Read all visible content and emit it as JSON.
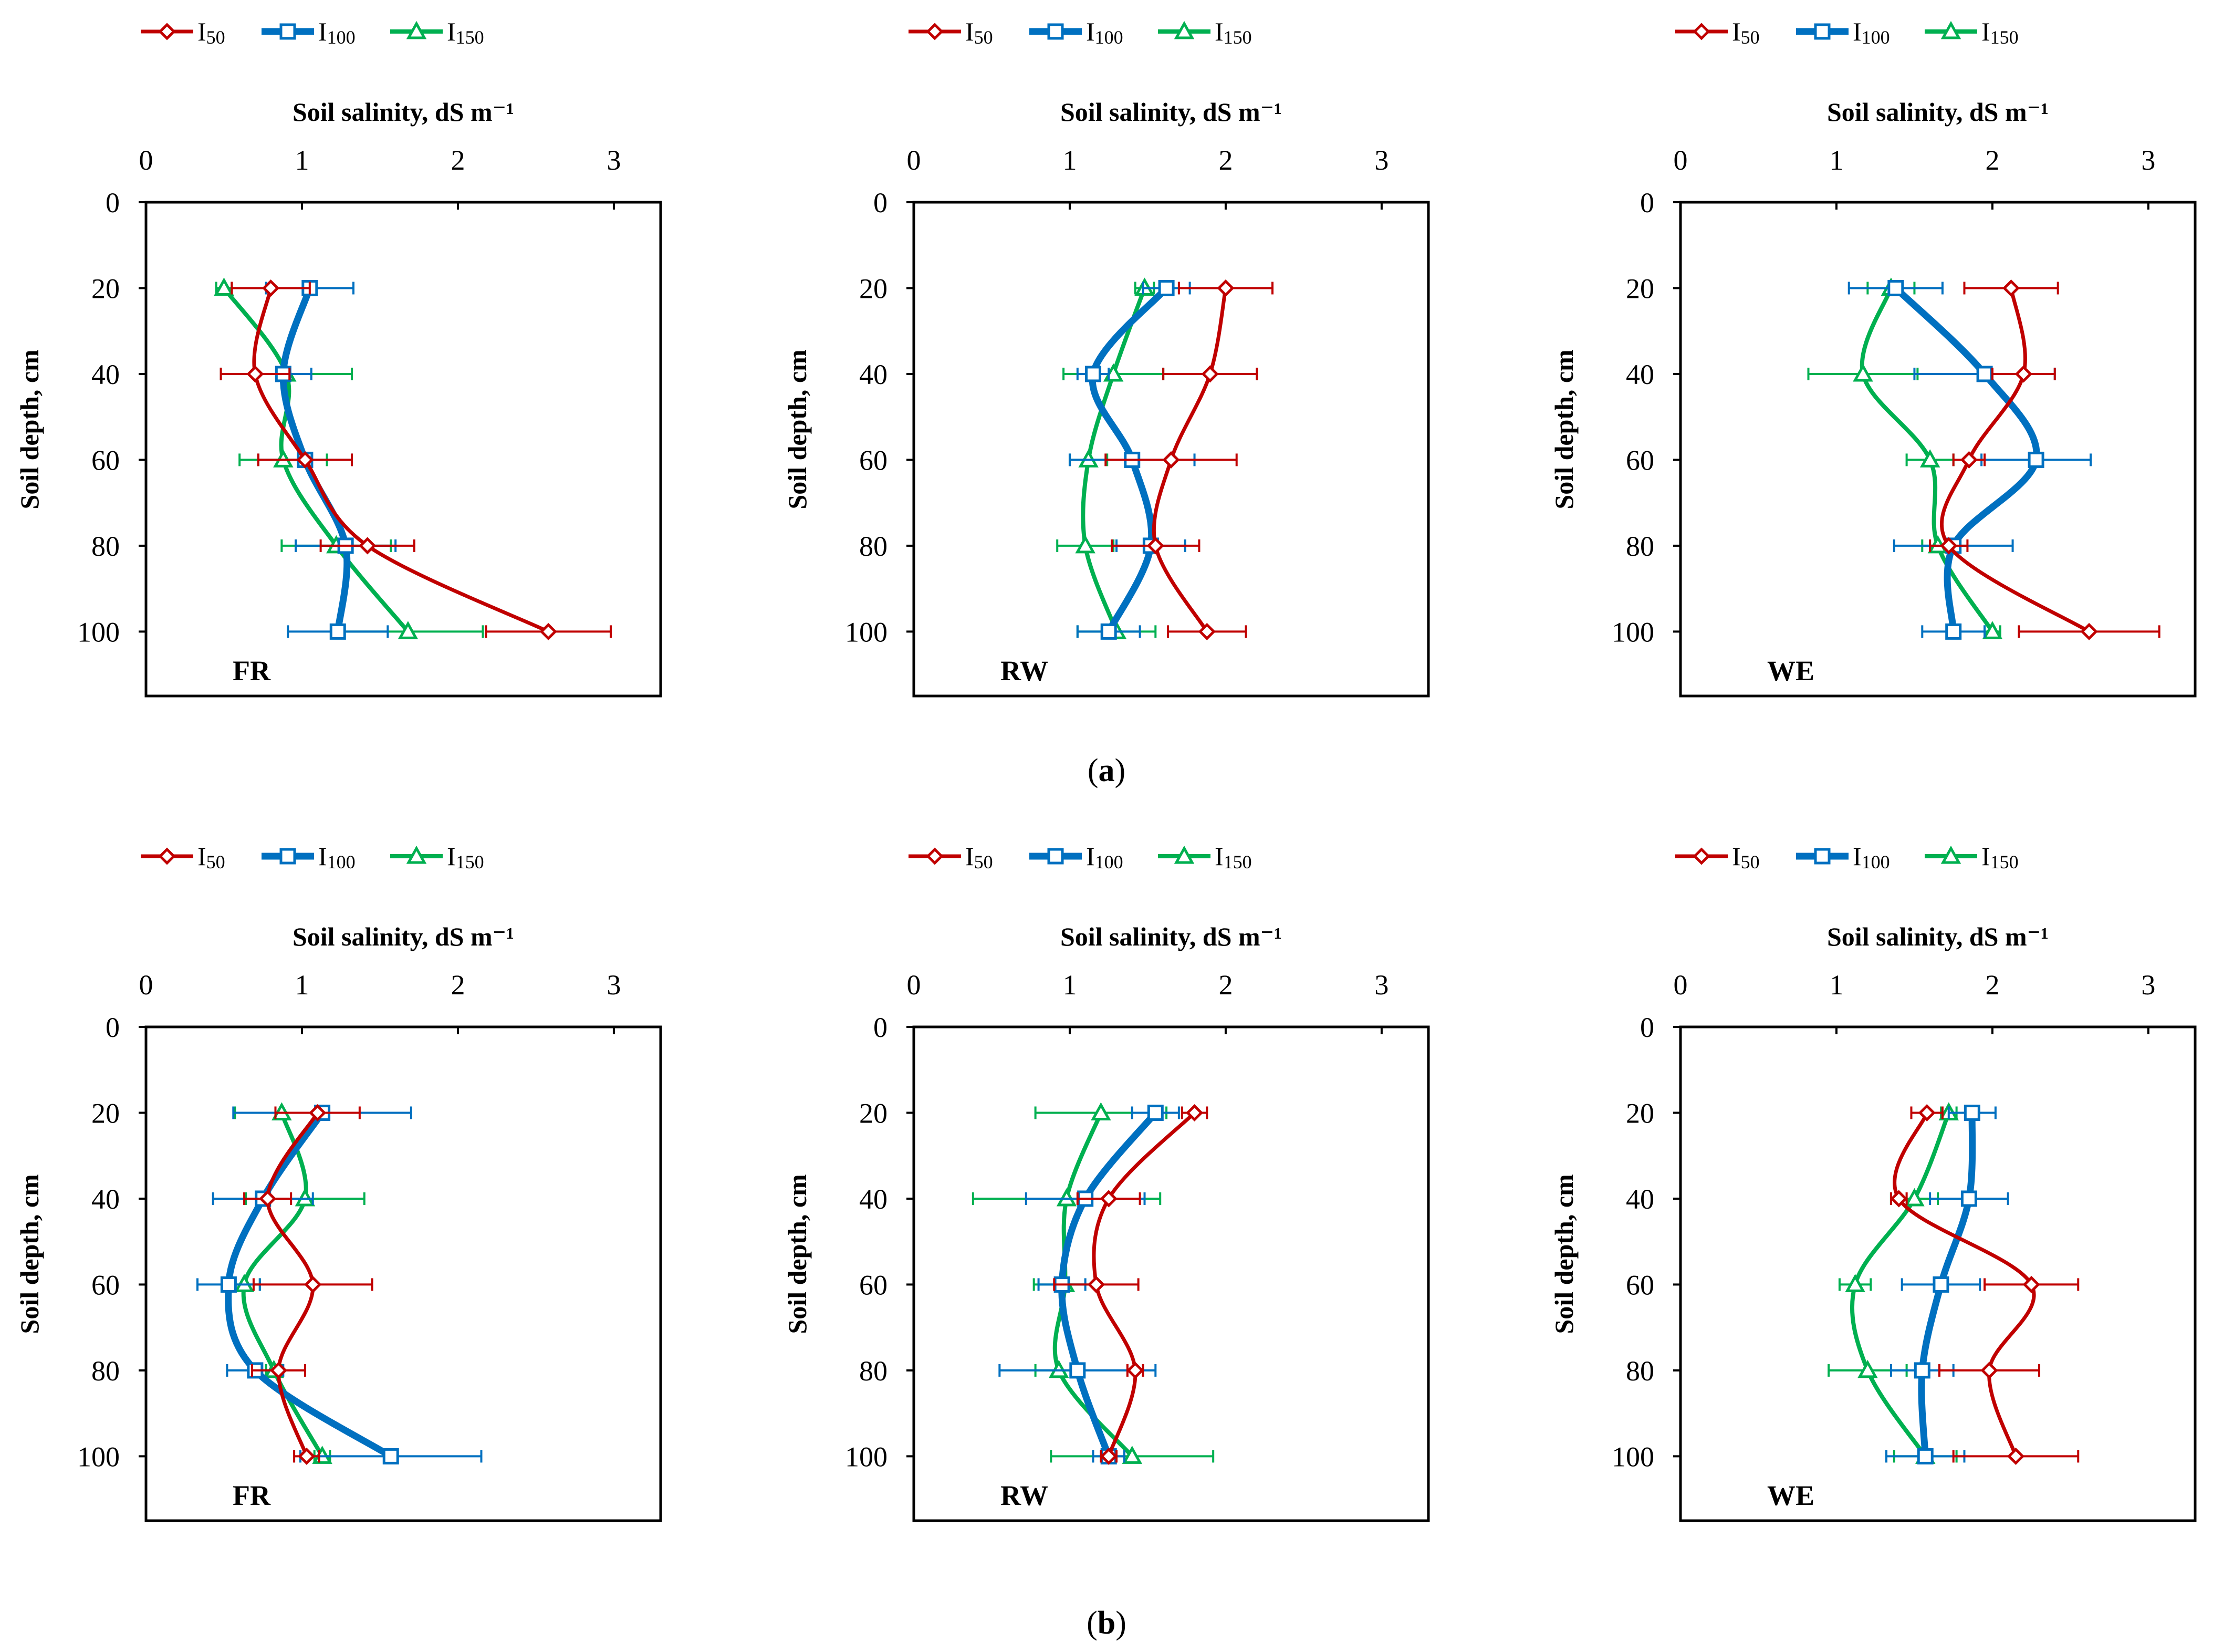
{
  "colors": {
    "I50": "#C00000",
    "I100": "#0070C0",
    "I150": "#00B050"
  },
  "legend_entries": [
    {
      "key": "I50",
      "label": "I",
      "sub": "50",
      "marker": "diamond"
    },
    {
      "key": "I100",
      "label": "I",
      "sub": "100",
      "marker": "square"
    },
    {
      "key": "I150",
      "label": "I",
      "sub": "150",
      "marker": "triangle"
    }
  ],
  "axis": {
    "xlabel": "Soil salinity, dS m⁻¹",
    "ylabel": "Soil depth, cm",
    "xticks": [
      "0",
      "1",
      "2",
      "3"
    ],
    "yticks": [
      "0",
      "20",
      "40",
      "60",
      "80",
      "100"
    ]
  },
  "captions": [
    {
      "open": "(",
      "letter": "a",
      "close": ")"
    },
    {
      "open": "(",
      "letter": "b",
      "close": ")"
    }
  ],
  "chart_data": [
    {
      "type": "line",
      "panel": "FR",
      "row": "a",
      "xlabel": "Soil salinity, dS m⁻¹",
      "ylabel": "Soil depth, cm",
      "xlim": [
        0,
        3.3
      ],
      "ylim": [
        0,
        115
      ],
      "depths": [
        20,
        40,
        60,
        80,
        100
      ],
      "series": [
        {
          "name": "I50",
          "values": [
            0.8,
            0.7,
            1.02,
            1.42,
            2.58
          ],
          "errors": [
            0.25,
            0.22,
            0.3,
            0.3,
            0.4
          ]
        },
        {
          "name": "I100",
          "values": [
            1.05,
            0.88,
            1.02,
            1.28,
            1.23
          ],
          "errors": [
            0.28,
            0.18,
            0.3,
            0.32,
            0.32
          ]
        },
        {
          "name": "I150",
          "values": [
            0.5,
            0.9,
            0.88,
            1.22,
            1.68
          ],
          "errors": [
            0.05,
            0.42,
            0.28,
            0.35,
            0.48
          ]
        }
      ]
    },
    {
      "type": "line",
      "panel": "RW",
      "row": "a",
      "xlabel": "Soil salinity, dS m⁻¹",
      "ylabel": "Soil depth, cm",
      "xlim": [
        0,
        3.3
      ],
      "ylim": [
        0,
        115
      ],
      "depths": [
        20,
        40,
        60,
        80,
        100
      ],
      "series": [
        {
          "name": "I50",
          "values": [
            2.0,
            1.9,
            1.65,
            1.55,
            1.88
          ],
          "errors": [
            0.3,
            0.3,
            0.42,
            0.28,
            0.25
          ]
        },
        {
          "name": "I100",
          "values": [
            1.62,
            1.15,
            1.4,
            1.52,
            1.25
          ],
          "errors": [
            0.15,
            0.1,
            0.4,
            0.22,
            0.2
          ]
        },
        {
          "name": "I150",
          "values": [
            1.48,
            1.28,
            1.12,
            1.1,
            1.3
          ],
          "errors": [
            0.06,
            0.32,
            0.12,
            0.18,
            0.25
          ]
        }
      ]
    },
    {
      "type": "line",
      "panel": "WE",
      "row": "a",
      "xlabel": "Soil salinity, dS m⁻¹",
      "ylabel": "Soil depth, cm",
      "xlim": [
        0,
        3.3
      ],
      "ylim": [
        0,
        115
      ],
      "depths": [
        20,
        40,
        60,
        80,
        100
      ],
      "series": [
        {
          "name": "I50",
          "values": [
            2.12,
            2.2,
            1.85,
            1.72,
            2.62
          ],
          "errors": [
            0.3,
            0.2,
            0.1,
            0.12,
            0.45
          ]
        },
        {
          "name": "I100",
          "values": [
            1.38,
            1.95,
            2.28,
            1.75,
            1.75
          ],
          "errors": [
            0.3,
            0.45,
            0.35,
            0.38,
            0.2
          ]
        },
        {
          "name": "I150",
          "values": [
            1.35,
            1.17,
            1.6,
            1.65,
            2.0
          ],
          "errors": [
            0.15,
            0.35,
            0.15,
            0.1,
            0.05
          ]
        }
      ]
    },
    {
      "type": "line",
      "panel": "FR",
      "row": "b",
      "xlabel": "Soil salinity, dS m⁻¹",
      "ylabel": "Soil depth, cm",
      "xlim": [
        0,
        3.3
      ],
      "ylim": [
        0,
        115
      ],
      "depths": [
        20,
        40,
        60,
        80,
        100
      ],
      "series": [
        {
          "name": "I50",
          "values": [
            1.1,
            0.78,
            1.07,
            0.85,
            1.03
          ],
          "errors": [
            0.27,
            0.15,
            0.38,
            0.17,
            0.08
          ]
        },
        {
          "name": "I100",
          "values": [
            1.13,
            0.75,
            0.53,
            0.7,
            1.57
          ],
          "errors": [
            0.57,
            0.32,
            0.2,
            0.18,
            0.58
          ]
        },
        {
          "name": "I150",
          "values": [
            0.87,
            1.02,
            0.63,
            0.82,
            1.13
          ],
          "errors": [
            0.3,
            0.38,
            0.1,
            0.05,
            0.05
          ]
        }
      ]
    },
    {
      "type": "line",
      "panel": "RW",
      "row": "b",
      "xlabel": "Soil salinity, dS m⁻¹",
      "ylabel": "Soil depth, cm",
      "xlim": [
        0,
        3.3
      ],
      "ylim": [
        0,
        115
      ],
      "depths": [
        20,
        40,
        60,
        80,
        100
      ],
      "series": [
        {
          "name": "I50",
          "values": [
            1.8,
            1.25,
            1.17,
            1.42,
            1.25
          ],
          "errors": [
            0.08,
            0.2,
            0.27,
            0.05,
            0.05
          ]
        },
        {
          "name": "I100",
          "values": [
            1.55,
            1.1,
            0.95,
            1.05,
            1.25
          ],
          "errors": [
            0.15,
            0.38,
            0.15,
            0.5,
            0.1
          ]
        },
        {
          "name": "I150",
          "values": [
            1.2,
            0.98,
            0.97,
            0.93,
            1.4
          ],
          "errors": [
            0.42,
            0.6,
            0.2,
            0.15,
            0.52
          ]
        }
      ]
    },
    {
      "type": "line",
      "panel": "WE",
      "row": "b",
      "xlabel": "Soil salinity, dS m⁻¹",
      "ylabel": "Soil depth, cm",
      "xlim": [
        0,
        3.3
      ],
      "ylim": [
        0,
        115
      ],
      "depths": [
        20,
        40,
        60,
        80,
        100
      ],
      "series": [
        {
          "name": "I50",
          "values": [
            1.58,
            1.4,
            2.25,
            1.98,
            2.15
          ],
          "errors": [
            0.1,
            0.05,
            0.3,
            0.32,
            0.4
          ]
        },
        {
          "name": "I100",
          "values": [
            1.87,
            1.85,
            1.67,
            1.55,
            1.57
          ],
          "errors": [
            0.15,
            0.25,
            0.25,
            0.2,
            0.25
          ]
        },
        {
          "name": "I150",
          "values": [
            1.72,
            1.5,
            1.12,
            1.2,
            1.57
          ],
          "errors": [
            0.05,
            0.15,
            0.1,
            0.25,
            0.2
          ]
        }
      ]
    }
  ]
}
